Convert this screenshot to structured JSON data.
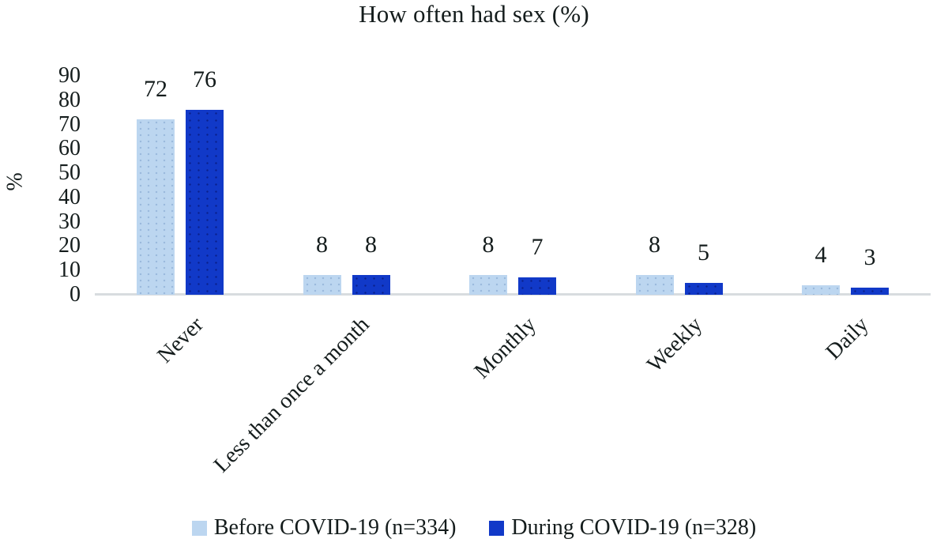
{
  "title": "How often had sex (%)",
  "chart_data": {
    "type": "bar",
    "title": "How often had sex (%)",
    "categories": [
      "Never",
      "Less than once a month",
      "Monthly",
      "Weekly",
      "Daily"
    ],
    "series": [
      {
        "name": "Before COVID-19 (n=334)",
        "color": "#bcd6f0",
        "values": [
          72,
          8,
          8,
          8,
          4
        ]
      },
      {
        "name": "During COVID-19 (n=328)",
        "color": "#1139c8",
        "values": [
          76,
          8,
          7,
          5,
          3
        ]
      }
    ],
    "ylabel": "%",
    "yticks": [
      0,
      10,
      20,
      30,
      40,
      50,
      60,
      70,
      80,
      90
    ],
    "ylim": [
      0,
      90
    ],
    "grid": false,
    "data_labels": true,
    "legend_position": "bottom",
    "axis_line_color": "#d8dcdf",
    "text_color": "#141c1c"
  }
}
